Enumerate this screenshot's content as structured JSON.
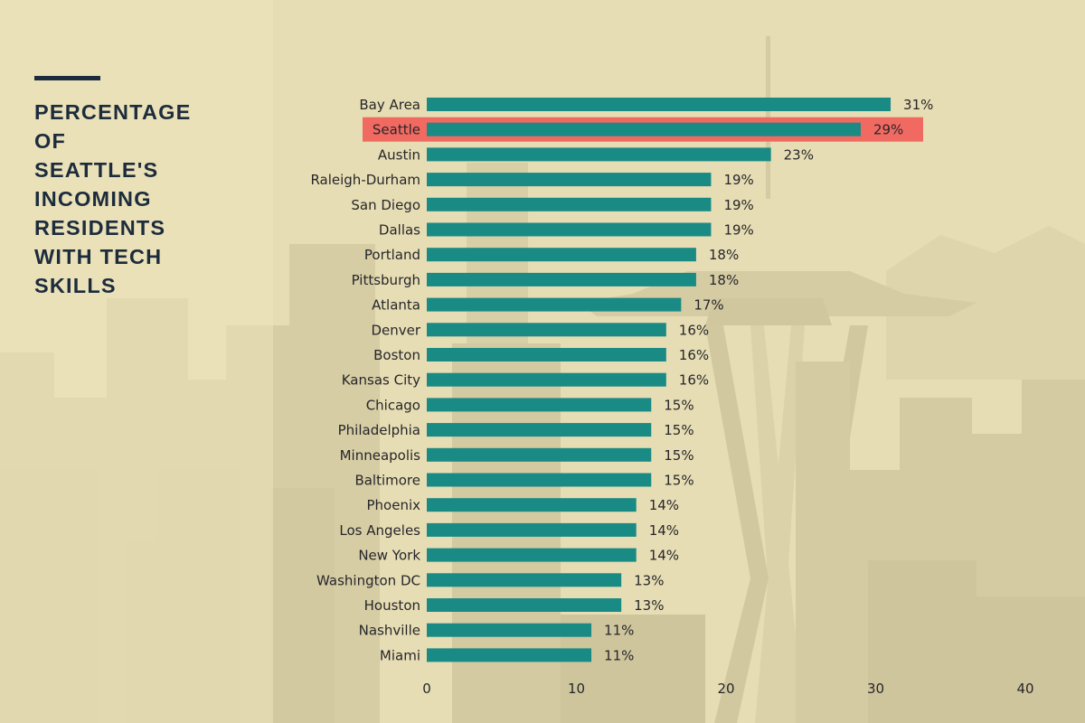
{
  "title_lines": [
    "PERCENTAGE",
    "OF",
    "SEATTLE'S",
    "INCOMING",
    "RESIDENTS",
    "WITH TECH",
    "SKILLS"
  ],
  "colors": {
    "bar": "#1a8a84",
    "highlight": "#f06a62",
    "title": "#1d2c3d",
    "text": "#26262a",
    "background": "#e6dcb2"
  },
  "background_image": "seattle-skyline-with-space-needle",
  "chart_data": {
    "type": "bar",
    "orientation": "horizontal",
    "title": "PERCENTAGE OF SEATTLE'S INCOMING RESIDENTS WITH TECH SKILLS",
    "categories": [
      "Bay Area",
      "Seattle",
      "Austin",
      "Raleigh-Durham",
      "San Diego",
      "Dallas",
      "Portland",
      "Pittsburgh",
      "Atlanta",
      "Denver",
      "Boston",
      "Kansas City",
      "Chicago",
      "Philadelphia",
      "Minneapolis",
      "Baltimore",
      "Phoenix",
      "Los Angeles",
      "New York",
      "Washington DC",
      "Houston",
      "Nashville",
      "Miami"
    ],
    "values": [
      31,
      29,
      23,
      19,
      19,
      19,
      18,
      18,
      17,
      16,
      16,
      16,
      15,
      15,
      15,
      15,
      14,
      14,
      14,
      13,
      13,
      11,
      11
    ],
    "value_labels": [
      "31%",
      "29%",
      "23%",
      "19%",
      "19%",
      "19%",
      "18%",
      "18%",
      "17%",
      "16%",
      "16%",
      "16%",
      "15%",
      "15%",
      "15%",
      "15%",
      "14%",
      "14%",
      "14%",
      "13%",
      "13%",
      "11%",
      "11%"
    ],
    "highlighted_category": "Seattle",
    "xlim": [
      0,
      40
    ],
    "xticks": [
      0,
      10,
      20,
      30,
      40
    ],
    "xlabel": "",
    "ylabel": "",
    "grid": false,
    "legend": "none"
  }
}
